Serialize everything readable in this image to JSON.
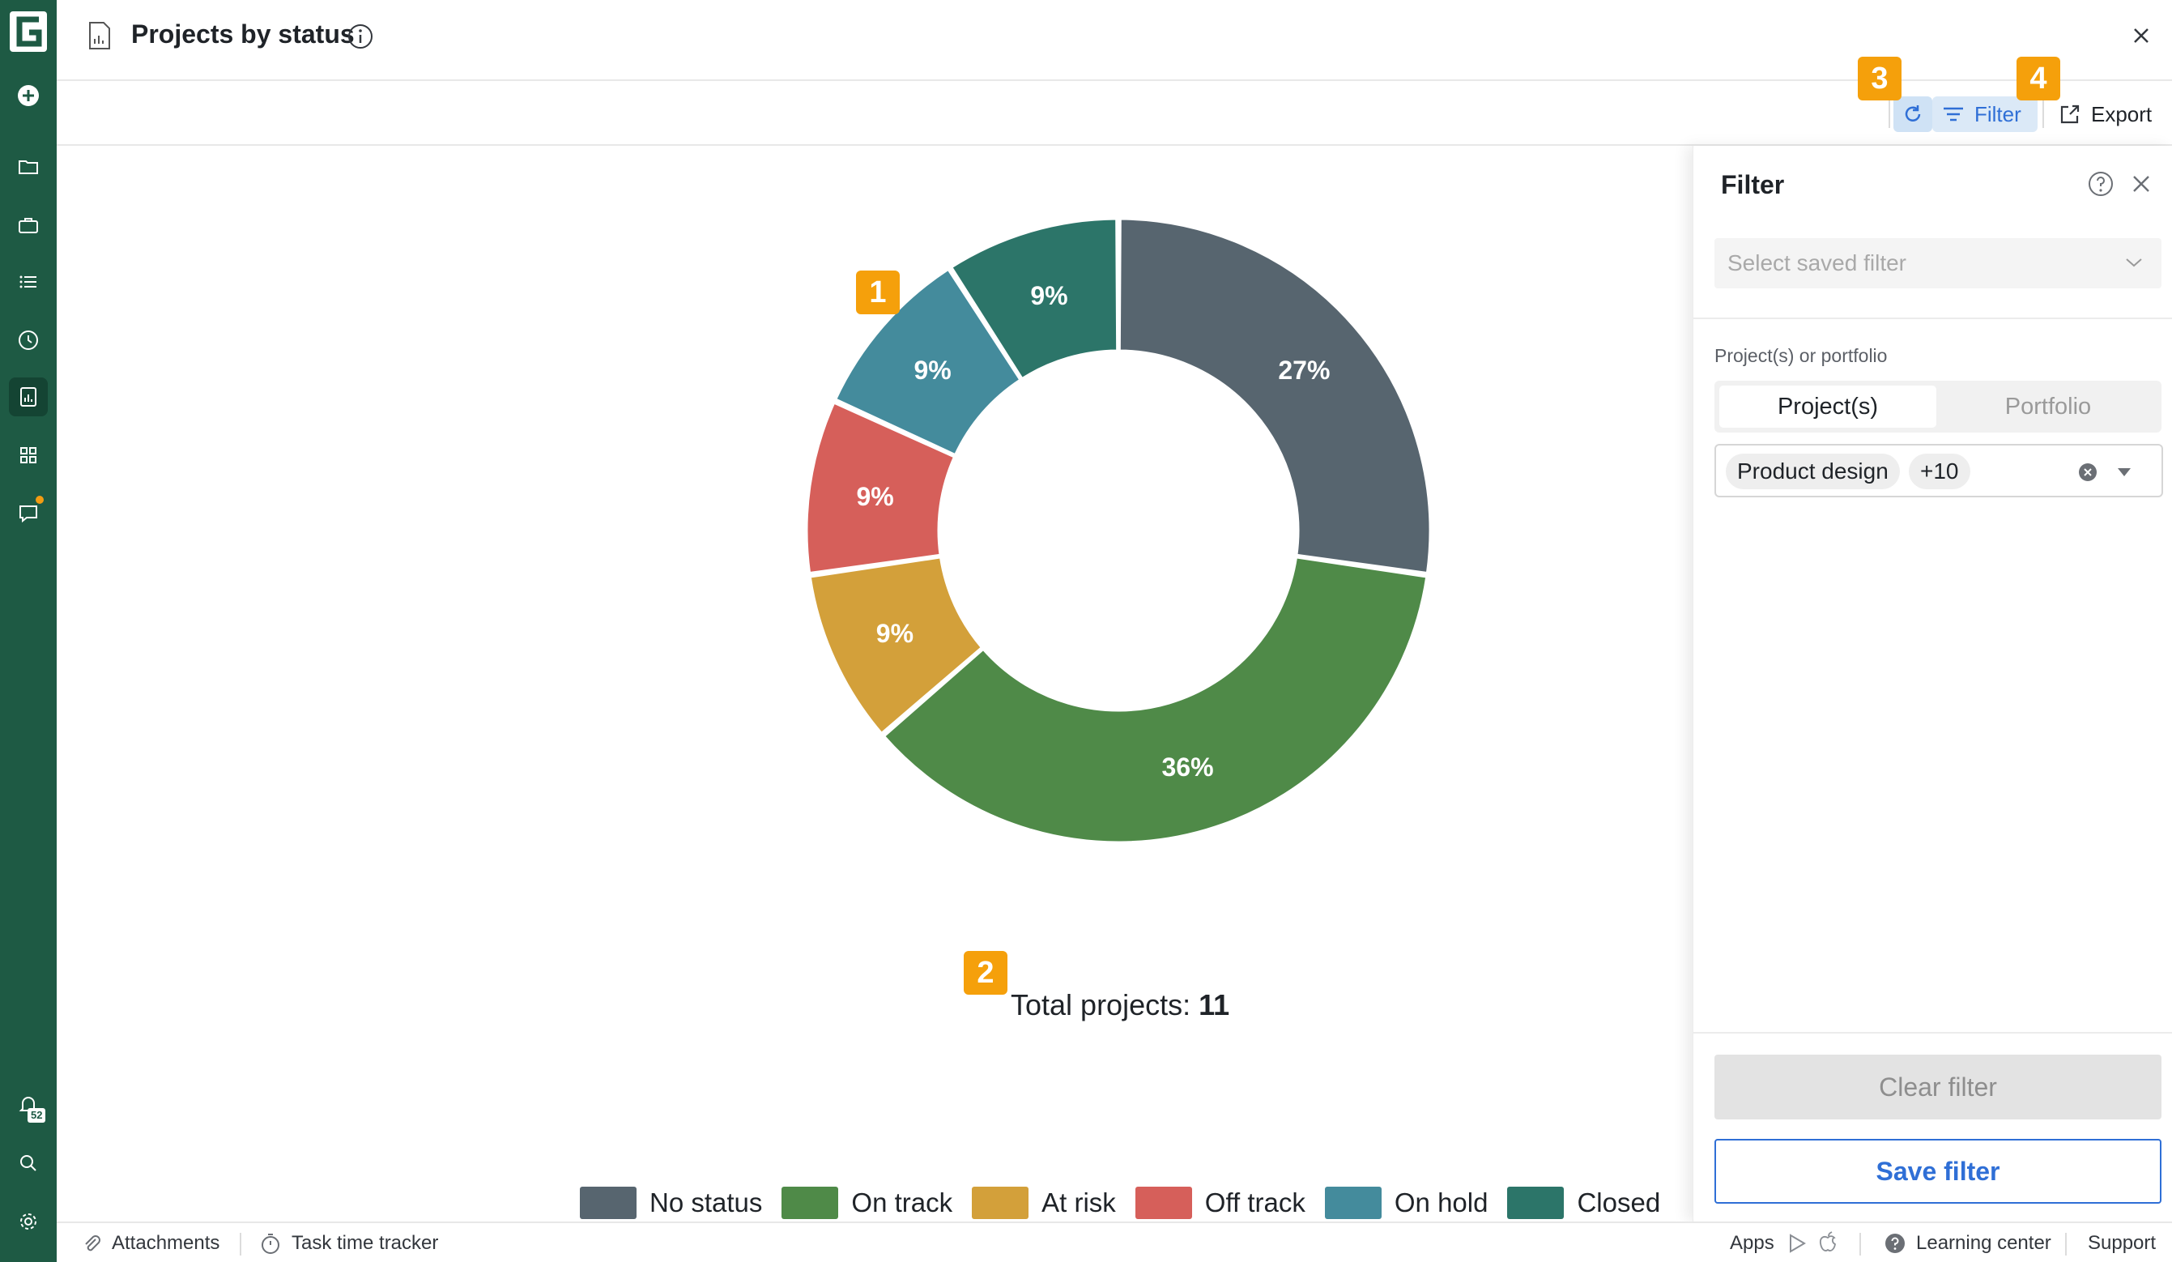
{
  "header": {
    "title": "Projects by status"
  },
  "toolbar": {
    "filter_label": "Filter",
    "export_label": "Export"
  },
  "markers": {
    "m1": "1",
    "m2": "2",
    "m3": "3",
    "m4": "4"
  },
  "rail": {
    "notification_count": "52"
  },
  "chart_data": {
    "type": "pie",
    "donut": true,
    "title": "Projects by status",
    "categories": [
      "No status",
      "On track",
      "At risk",
      "Off track",
      "On hold",
      "Closed"
    ],
    "values": [
      3,
      4,
      1,
      1,
      1,
      1
    ],
    "labels": [
      "27%",
      "36%",
      "9%",
      "9%",
      "9%",
      "9%"
    ],
    "colors": [
      "#57656f",
      "#4f8a48",
      "#d3a03a",
      "#d65f5a",
      "#448b9c",
      "#2c7569"
    ],
    "legend_position": "bottom-center",
    "total_label": "Total projects:",
    "total_value": "11"
  },
  "filter_panel": {
    "title": "Filter",
    "saved_filter_placeholder": "Select saved filter",
    "field_label": "Project(s) or portfolio",
    "tabs": [
      {
        "label": "Project(s)",
        "active": true
      },
      {
        "label": "Portfolio",
        "active": false
      }
    ],
    "selected_chip": "Product design",
    "more_chip": "+10",
    "clear_label": "Clear filter",
    "save_label": "Save filter"
  },
  "statusbar": {
    "attachments": "Attachments",
    "time_tracker": "Task time tracker",
    "apps": "Apps",
    "learning": "Learning center",
    "support": "Support"
  }
}
